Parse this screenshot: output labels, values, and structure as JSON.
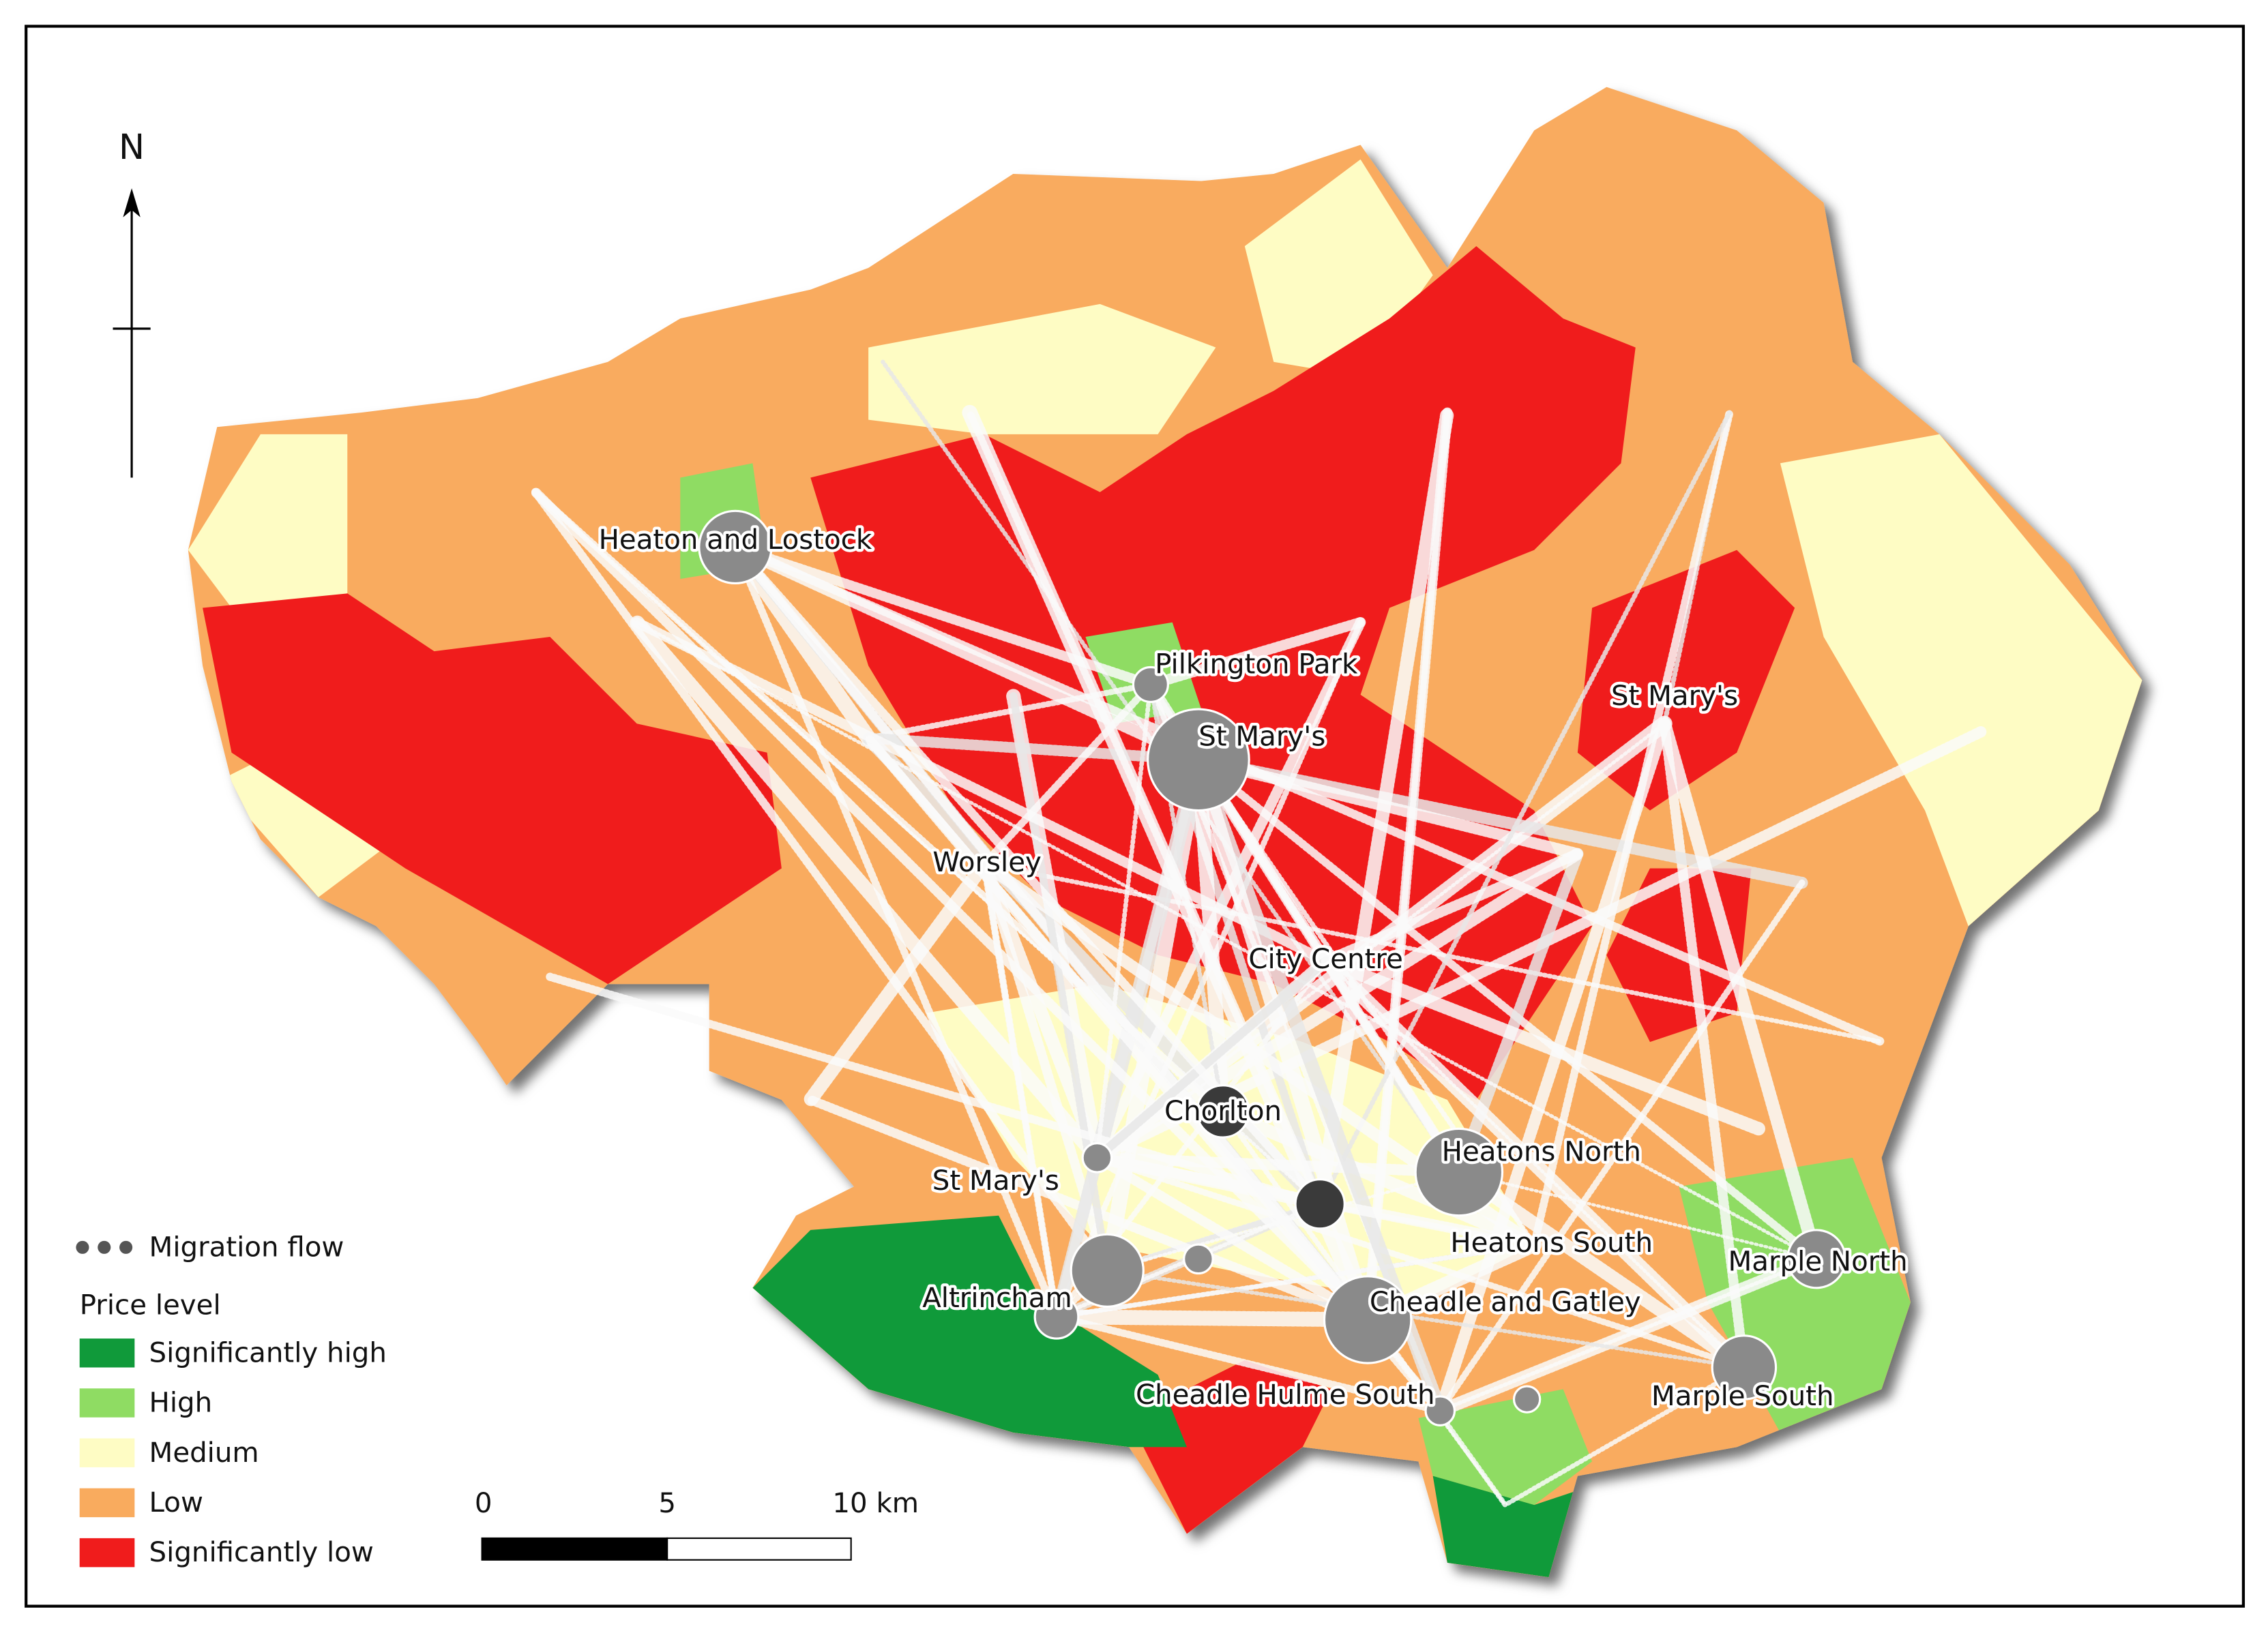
{
  "north": "N",
  "places": [
    {
      "label": "Heaton and Lostock"
    },
    {
      "label": "Pilkington Park"
    },
    {
      "label": "St Mary's"
    },
    {
      "label": "St Mary's"
    },
    {
      "label": "Worsley"
    },
    {
      "label": "City Centre"
    },
    {
      "label": "Chorlton"
    },
    {
      "label": "St Mary's"
    },
    {
      "label": "Heatons North"
    },
    {
      "label": "Heatons South"
    },
    {
      "label": "Marple North"
    },
    {
      "label": "Altrincham"
    },
    {
      "label": "Cheadle and Gatley"
    },
    {
      "label": "Cheadle Hulme South"
    },
    {
      "label": "Marple South"
    }
  ],
  "legend": {
    "flow": "Migration flow",
    "title": "Price level",
    "items": [
      {
        "label": "Significantly high",
        "color": "#109a3a"
      },
      {
        "label": "High",
        "color": "#8fdc63"
      },
      {
        "label": "Medium",
        "color": "#fefcc4"
      },
      {
        "label": "Low",
        "color": "#f9ab5e"
      },
      {
        "label": "Significantly low",
        "color": "#f01c1c"
      }
    ]
  },
  "scale": {
    "labels": [
      "0",
      "5",
      "10 km"
    ]
  }
}
